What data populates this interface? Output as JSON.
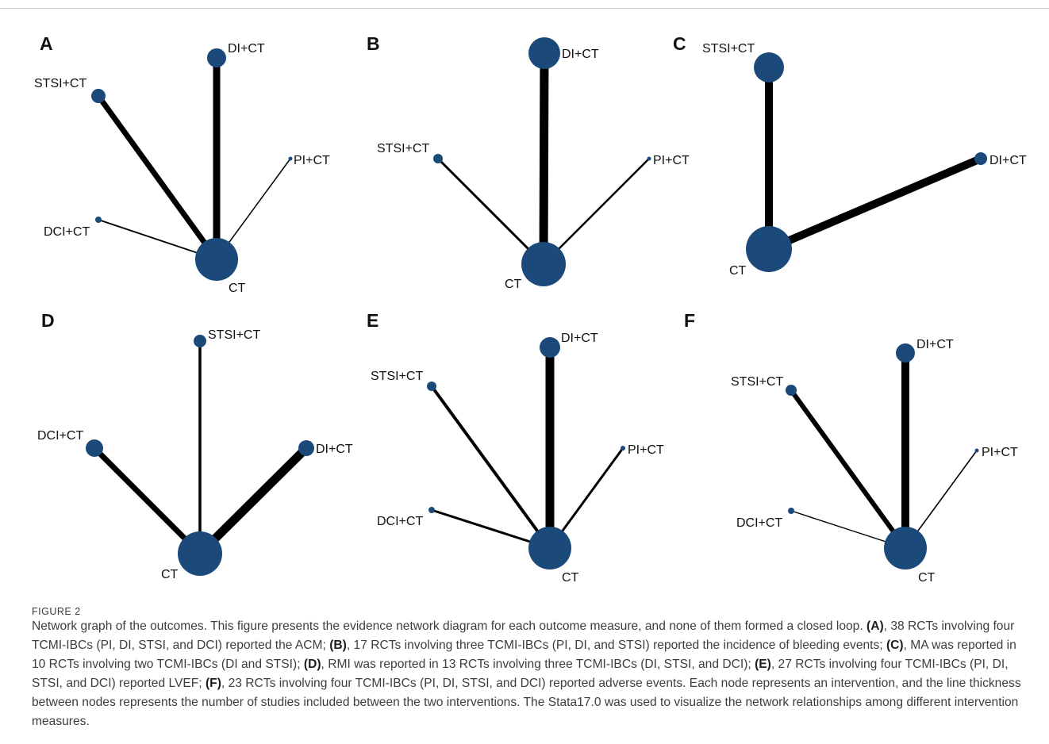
{
  "figure": {
    "node_color": "#1b4a7a",
    "panels": [
      {
        "letter": "A",
        "nodes": [
          {
            "id": "DI+CT",
            "label": "DI+CT"
          },
          {
            "id": "STSI+CT",
            "label": "STSI+CT"
          },
          {
            "id": "PI+CT",
            "label": "PI+CT"
          },
          {
            "id": "DCI+CT",
            "label": "DCI+CT"
          },
          {
            "id": "CT",
            "label": "CT"
          }
        ],
        "edges": [
          {
            "from": "CT",
            "to": "DI+CT"
          },
          {
            "from": "CT",
            "to": "STSI+CT"
          },
          {
            "from": "CT",
            "to": "PI+CT"
          },
          {
            "from": "CT",
            "to": "DCI+CT"
          }
        ]
      },
      {
        "letter": "B",
        "nodes": [
          {
            "id": "DI+CT",
            "label": "DI+CT"
          },
          {
            "id": "STSI+CT",
            "label": "STSI+CT"
          },
          {
            "id": "PI+CT",
            "label": "PI+CT"
          },
          {
            "id": "CT",
            "label": "CT"
          }
        ],
        "edges": [
          {
            "from": "CT",
            "to": "DI+CT"
          },
          {
            "from": "CT",
            "to": "STSI+CT"
          },
          {
            "from": "CT",
            "to": "PI+CT"
          }
        ]
      },
      {
        "letter": "C",
        "nodes": [
          {
            "id": "STSI+CT",
            "label": "STSI+CT"
          },
          {
            "id": "DI+CT",
            "label": "DI+CT"
          },
          {
            "id": "CT",
            "label": "CT"
          }
        ],
        "edges": [
          {
            "from": "CT",
            "to": "STSI+CT"
          },
          {
            "from": "CT",
            "to": "DI+CT"
          }
        ]
      },
      {
        "letter": "D",
        "nodes": [
          {
            "id": "STSI+CT",
            "label": "STSI+CT"
          },
          {
            "id": "DCI+CT",
            "label": "DCI+CT"
          },
          {
            "id": "DI+CT",
            "label": "DI+CT"
          },
          {
            "id": "CT",
            "label": "CT"
          }
        ],
        "edges": [
          {
            "from": "CT",
            "to": "STSI+CT"
          },
          {
            "from": "CT",
            "to": "DCI+CT"
          },
          {
            "from": "CT",
            "to": "DI+CT"
          }
        ]
      },
      {
        "letter": "E",
        "nodes": [
          {
            "id": "DI+CT",
            "label": "DI+CT"
          },
          {
            "id": "STSI+CT",
            "label": "STSI+CT"
          },
          {
            "id": "PI+CT",
            "label": "PI+CT"
          },
          {
            "id": "DCI+CT",
            "label": "DCI+CT"
          },
          {
            "id": "CT",
            "label": "CT"
          }
        ],
        "edges": [
          {
            "from": "CT",
            "to": "DI+CT"
          },
          {
            "from": "CT",
            "to": "STSI+CT"
          },
          {
            "from": "CT",
            "to": "PI+CT"
          },
          {
            "from": "CT",
            "to": "DCI+CT"
          }
        ]
      },
      {
        "letter": "F",
        "nodes": [
          {
            "id": "DI+CT",
            "label": "DI+CT"
          },
          {
            "id": "STSI+CT",
            "label": "STSI+CT"
          },
          {
            "id": "PI+CT",
            "label": "PI+CT"
          },
          {
            "id": "DCI+CT",
            "label": "DCI+CT"
          },
          {
            "id": "CT",
            "label": "CT"
          }
        ],
        "edges": [
          {
            "from": "CT",
            "to": "DI+CT"
          },
          {
            "from": "CT",
            "to": "STSI+CT"
          },
          {
            "from": "CT",
            "to": "PI+CT"
          },
          {
            "from": "CT",
            "to": "DCI+CT"
          }
        ]
      }
    ]
  },
  "caption": {
    "label": "FIGURE 2",
    "segments": [
      {
        "text": "Network graph of the outcomes. This figure presents the evidence network diagram for each outcome measure, and none of them formed a closed loop. ",
        "bold": false
      },
      {
        "text": "(A)",
        "bold": true
      },
      {
        "text": ", 38 RCTs involving four TCMI-IBCs (PI, DI, STSI, and DCI) reported the ACM; ",
        "bold": false
      },
      {
        "text": "(B)",
        "bold": true
      },
      {
        "text": ", 17 RCTs involving three TCMI-IBCs (PI, DI, and STSI) reported the incidence of bleeding events; ",
        "bold": false
      },
      {
        "text": "(C)",
        "bold": true
      },
      {
        "text": ", MA was reported in 10 RCTs involving two TCMI-IBCs (DI and STSI); ",
        "bold": false
      },
      {
        "text": "(D)",
        "bold": true
      },
      {
        "text": ", RMI was reported in 13 RCTs involving three TCMI-IBCs (DI, STSI, and DCI); ",
        "bold": false
      },
      {
        "text": "(E)",
        "bold": true
      },
      {
        "text": ", 27 RCTs involving four TCMI-IBCs (PI, DI, STSI, and DCI) reported LVEF; ",
        "bold": false
      },
      {
        "text": "(F)",
        "bold": true
      },
      {
        "text": ", 23 RCTs involving four TCMI-IBCs (PI, DI, STSI, and DCI) reported adverse events. Each node represents an intervention, and the line thickness between nodes represents the number of studies included between the two interventions. The Stata17.0 was used to visualize the network relationships among different intervention measures.",
        "bold": false
      }
    ]
  }
}
